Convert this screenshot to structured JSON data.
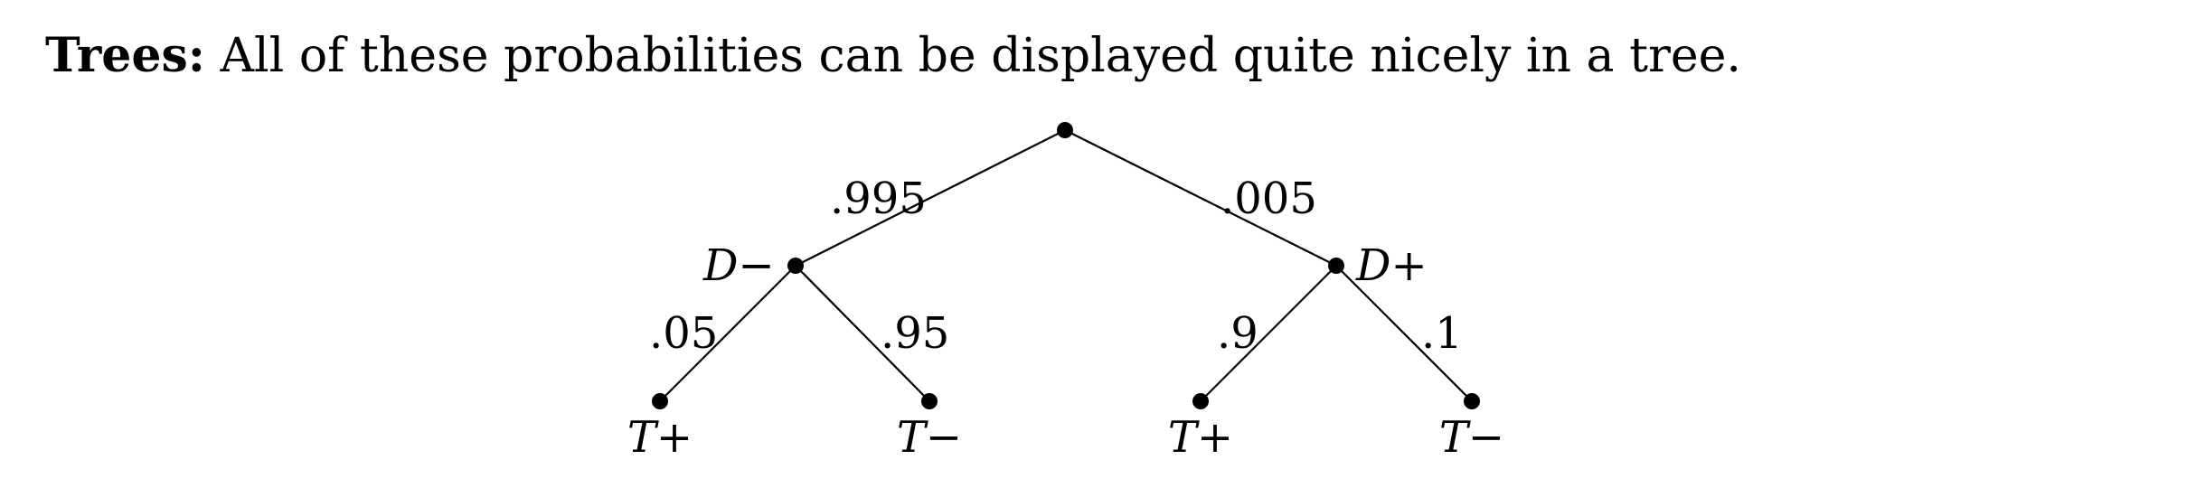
{
  "intro": {
    "lead": "Trees:",
    "text": "All of these probabilities can be displayed quite nicely in a tree."
  },
  "tree": {
    "root": {
      "branches": {
        "left": {
          "probability": ".995",
          "node_label": "D−"
        },
        "right": {
          "probability": ".005",
          "node_label": "D+"
        }
      }
    },
    "d_minus_branches": {
      "left": {
        "probability": ".05",
        "leaf_label": "T+"
      },
      "right": {
        "probability": ".95",
        "leaf_label": "T−"
      }
    },
    "d_plus_branches": {
      "left": {
        "probability": ".9",
        "leaf_label": "T+"
      },
      "right": {
        "probability": ".1",
        "leaf_label": "T−"
      }
    }
  }
}
